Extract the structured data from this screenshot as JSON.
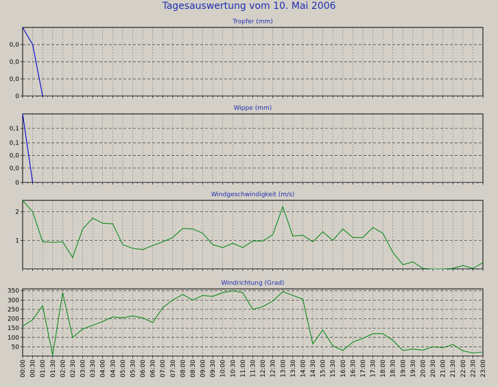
{
  "title": "Tagesauswertung vom 10. Mai 2006",
  "x_labels": [
    "00:00",
    "00:30",
    "01:00",
    "01:30",
    "02:00",
    "02:30",
    "03:00",
    "03:30",
    "04:00",
    "04:30",
    "05:00",
    "05:30",
    "06:00",
    "06:30",
    "07:00",
    "07:30",
    "08:00",
    "08:30",
    "09:00",
    "09:30",
    "10:00",
    "10:30",
    "11:00",
    "11:30",
    "12:00",
    "12:30",
    "13:00",
    "13:30",
    "14:00",
    "14:30",
    "15:00",
    "15:30",
    "16:00",
    "16:30",
    "17:00",
    "17:30",
    "18:00",
    "18:30",
    "19:00",
    "19:30",
    "20:00",
    "20:30",
    "21:00",
    "21:30",
    "22:00",
    "22:30",
    "23:00"
  ],
  "colors": {
    "blue_series": "#0000cc",
    "green_series": "#0a8a1a",
    "grid": "#7a7a7a",
    "plot_bg": "#d4d0c8"
  },
  "chart_data": [
    {
      "type": "line",
      "title": "Tropfer (mm)",
      "ytick_labels": [
        "0,0",
        "0,0",
        "0,0",
        "0"
      ],
      "ytick_values": [
        0.03,
        0.02,
        0.01,
        0
      ],
      "ylim": [
        0,
        0.04
      ],
      "series": [
        {
          "values": [
            0.04,
            0.03,
            0.0
          ]
        }
      ]
    },
    {
      "type": "line",
      "title": "Wippe (mm)",
      "ytick_labels": [
        "0,1",
        "0,1",
        "0,0",
        "0,0",
        "0"
      ],
      "ytick_values": [
        0.15,
        0.11,
        0.075,
        0.04,
        0
      ],
      "ylim": [
        0,
        0.19
      ],
      "series": [
        {
          "values": [
            0.19,
            0.0
          ]
        }
      ]
    },
    {
      "type": "line",
      "title": "Windgeschwindigkeit (m/s)",
      "ytick_labels": [
        "2",
        "1"
      ],
      "ytick_values": [
        2,
        1
      ],
      "ylim": [
        0,
        2.4
      ],
      "series": [
        {
          "values": [
            2.4,
            2.0,
            0.95,
            0.93,
            0.95,
            0.4,
            1.4,
            1.78,
            1.6,
            1.58,
            0.85,
            0.72,
            0.68,
            0.82,
            0.95,
            1.1,
            1.42,
            1.4,
            1.25,
            0.85,
            0.75,
            0.9,
            0.75,
            0.98,
            0.98,
            1.2,
            2.18,
            1.15,
            1.18,
            0.95,
            1.3,
            1.0,
            1.4,
            1.1,
            1.1,
            1.45,
            1.25,
            0.58,
            0.15,
            0.25,
            0.02,
            0.0,
            0.0,
            0.02,
            0.12,
            0.02,
            0.22
          ]
        }
      ]
    },
    {
      "type": "line",
      "title": "Windrichtung (Grad)",
      "ytick_labels": [
        "350",
        "300",
        "250",
        "200",
        "150",
        "100",
        "50"
      ],
      "ytick_values": [
        350,
        300,
        250,
        200,
        150,
        100,
        50
      ],
      "ylim": [
        0,
        360
      ],
      "series": [
        {
          "values": [
            160,
            195,
            270,
            5,
            340,
            100,
            145,
            165,
            185,
            210,
            205,
            215,
            205,
            180,
            260,
            300,
            330,
            300,
            325,
            320,
            340,
            350,
            340,
            250,
            265,
            295,
            345,
            325,
            305,
            65,
            140,
            55,
            30,
            75,
            95,
            120,
            120,
            85,
            30,
            38,
            32,
            50,
            45,
            62,
            28,
            17,
            22
          ]
        }
      ]
    }
  ]
}
